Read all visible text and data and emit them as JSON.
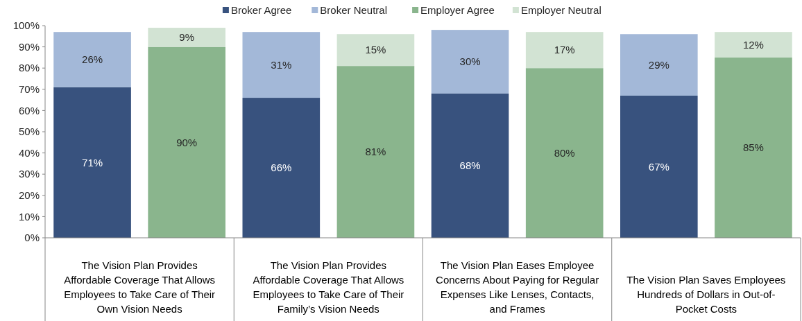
{
  "chart_data": {
    "type": "bar",
    "stacked": true,
    "categories": [
      "The Vision Plan Provides Affordable Coverage That Allows Employees to Take Care of Their Own Vision Needs",
      null,
      "The Vision Plan Provides Affordable Coverage That Allows Employees to Take Care of Their Family’s Vision Needs",
      null,
      "The Vision Plan Eases Employee Concerns About Paying for Regular Expenses Like Lenses, Contacts, and Frames",
      null,
      "The Vision Plan Saves Employees Hundreds of Dollars in Out-of-Pocket Costs",
      null
    ],
    "series": [
      {
        "name": "Broker Agree",
        "color": "#38527e",
        "values": [
          71,
          null,
          66,
          null,
          68,
          null,
          67,
          null
        ],
        "value_labels": [
          "71%",
          null,
          "66%",
          null,
          "68%",
          null,
          "67%",
          null
        ]
      },
      {
        "name": "Broker Neutral",
        "color": "#a3b8d8",
        "values": [
          26,
          null,
          31,
          null,
          30,
          null,
          29,
          null
        ],
        "value_labels": [
          "26%",
          null,
          "31%",
          null,
          "30%",
          null,
          "29%",
          null
        ]
      },
      {
        "name": "Employer Agree",
        "color": "#8ab58d",
        "values": [
          null,
          90,
          null,
          81,
          null,
          80,
          null,
          85
        ],
        "value_labels": [
          null,
          "90%",
          null,
          "81%",
          null,
          "80%",
          null,
          "85%"
        ]
      },
      {
        "name": "Employer Neutral",
        "color": "#d2e3d3",
        "values": [
          null,
          9,
          null,
          15,
          null,
          17,
          null,
          12
        ],
        "value_labels": [
          null,
          "9%",
          null,
          "15%",
          null,
          "17%",
          null,
          "12%"
        ]
      }
    ],
    "ylim": [
      0,
      100
    ],
    "yticks": [
      {
        "value": 0,
        "label": "0%"
      },
      {
        "value": 10,
        "label": "10%"
      },
      {
        "value": 20,
        "label": "20%"
      },
      {
        "value": 30,
        "label": "30%"
      },
      {
        "value": 40,
        "label": "40%"
      },
      {
        "value": 50,
        "label": "50%"
      },
      {
        "value": 60,
        "label": "60%"
      },
      {
        "value": 70,
        "label": "70%"
      },
      {
        "value": 80,
        "label": "80%"
      },
      {
        "value": 90,
        "label": "90%"
      },
      {
        "value": 100,
        "label": "100%"
      }
    ],
    "legend": "top",
    "grid": false
  }
}
